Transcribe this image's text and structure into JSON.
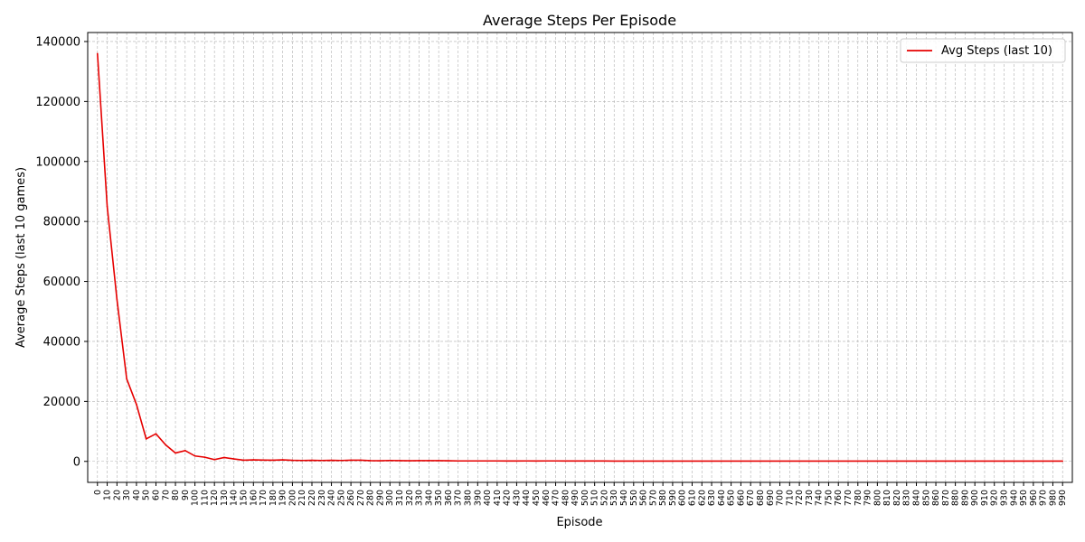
{
  "chart_data": {
    "type": "line",
    "title": "Average Steps Per Episode",
    "xlabel": "Episode",
    "ylabel": "Average Steps (last 10 games)",
    "xlim": [
      -10,
      1000
    ],
    "ylim": [
      -7000,
      143000
    ],
    "yticks": [
      0,
      20000,
      40000,
      60000,
      80000,
      100000,
      120000,
      140000
    ],
    "xtick_step": 10,
    "xtick_max": 990,
    "grid": true,
    "legend_position": "top-right",
    "colors": {
      "line": "#e60000",
      "grid": "#b0b0b0",
      "axis": "#000000"
    },
    "series": [
      {
        "name": "Avg Steps (last 10)",
        "x": [
          0,
          10,
          20,
          30,
          40,
          50,
          60,
          70,
          80,
          90,
          100,
          110,
          120,
          130,
          140,
          150,
          160,
          170,
          180,
          190,
          200,
          210,
          220,
          230,
          240,
          250,
          260,
          270,
          280,
          290,
          300,
          310,
          320,
          330,
          340,
          350,
          360,
          370,
          380,
          390,
          400,
          410,
          420,
          430,
          440,
          450,
          460,
          470,
          480,
          490,
          500,
          510,
          520,
          530,
          540,
          550,
          560,
          570,
          580,
          590,
          600,
          610,
          620,
          630,
          640,
          650,
          660,
          670,
          680,
          690,
          700,
          710,
          720,
          730,
          740,
          750,
          760,
          770,
          780,
          790,
          800,
          810,
          820,
          830,
          840,
          850,
          860,
          870,
          880,
          890,
          900,
          910,
          920,
          930,
          940,
          950,
          960,
          970,
          980,
          990
        ],
        "values": [
          136000,
          85000,
          54000,
          27500,
          19000,
          7500,
          9200,
          5500,
          2800,
          3600,
          1800,
          1400,
          600,
          1300,
          800,
          400,
          500,
          450,
          400,
          500,
          350,
          300,
          350,
          300,
          350,
          300,
          400,
          400,
          250,
          200,
          300,
          250,
          200,
          250,
          250,
          250,
          200,
          150,
          150,
          150,
          150,
          150,
          120,
          120,
          150,
          120,
          150,
          150,
          120,
          120,
          120,
          120,
          120,
          100,
          100,
          100,
          100,
          100,
          100,
          100,
          100,
          100,
          100,
          100,
          100,
          100,
          100,
          100,
          100,
          100,
          100,
          100,
          100,
          100,
          100,
          100,
          100,
          100,
          100,
          100,
          100,
          100,
          100,
          100,
          100,
          100,
          100,
          100,
          100,
          100,
          100,
          100,
          100,
          100,
          100,
          100,
          100,
          100,
          100,
          100
        ]
      }
    ]
  }
}
